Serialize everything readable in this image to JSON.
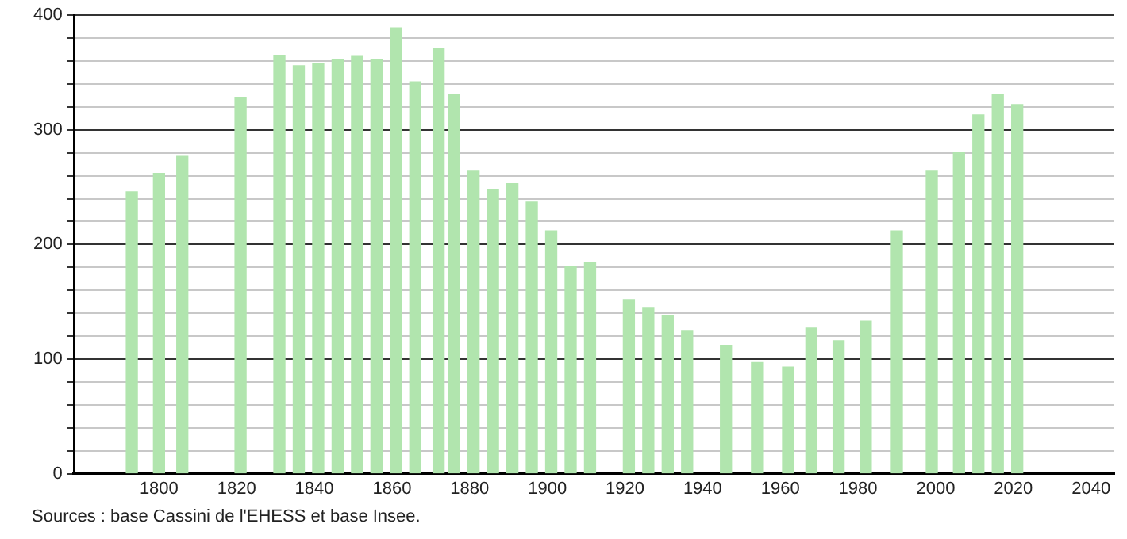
{
  "chart_data": {
    "type": "bar",
    "x": [
      1793,
      1800,
      1806,
      1821,
      1831,
      1836,
      1841,
      1846,
      1851,
      1856,
      1861,
      1866,
      1872,
      1876,
      1881,
      1886,
      1891,
      1896,
      1901,
      1906,
      1911,
      1921,
      1926,
      1931,
      1936,
      1946,
      1954,
      1962,
      1968,
      1975,
      1982,
      1990,
      1999,
      2006,
      2011,
      2016,
      2021
    ],
    "values": [
      246,
      262,
      277,
      328,
      365,
      356,
      358,
      361,
      364,
      361,
      389,
      342,
      371,
      331,
      264,
      248,
      253,
      237,
      212,
      181,
      184,
      152,
      145,
      138,
      125,
      112,
      97,
      93,
      127,
      116,
      133,
      212,
      264,
      280,
      313,
      331,
      322
    ],
    "color": "#b1e5ae",
    "xlim": [
      1778,
      2046
    ],
    "xticks": [
      1800,
      1820,
      1840,
      1860,
      1880,
      1900,
      1920,
      1940,
      1960,
      1980,
      2000,
      2020,
      2040
    ],
    "ylim": [
      0,
      400
    ],
    "yticks": [
      0,
      {
        "value": 20,
        "label": null
      },
      {
        "value": 40,
        "label": null
      },
      {
        "value": 60,
        "label": null
      },
      {
        "value": 80,
        "label": null
      },
      100,
      {
        "value": 120,
        "label": null
      },
      {
        "value": 140,
        "label": null
      },
      {
        "value": 160,
        "label": null
      },
      {
        "value": 180,
        "label": null
      },
      200,
      {
        "value": 220,
        "label": null
      },
      {
        "value": 240,
        "label": null
      },
      {
        "value": 260,
        "label": null
      },
      {
        "value": 280,
        "label": null
      },
      300,
      {
        "value": 320,
        "label": null
      },
      {
        "value": 340,
        "label": null
      },
      {
        "value": 360,
        "label": null
      },
      {
        "value": 380,
        "label": null
      },
      400
    ],
    "grid": "y",
    "legend": false,
    "annotations": [
      "Sources : base Cassini de l'EHESS et base Insee."
    ]
  }
}
